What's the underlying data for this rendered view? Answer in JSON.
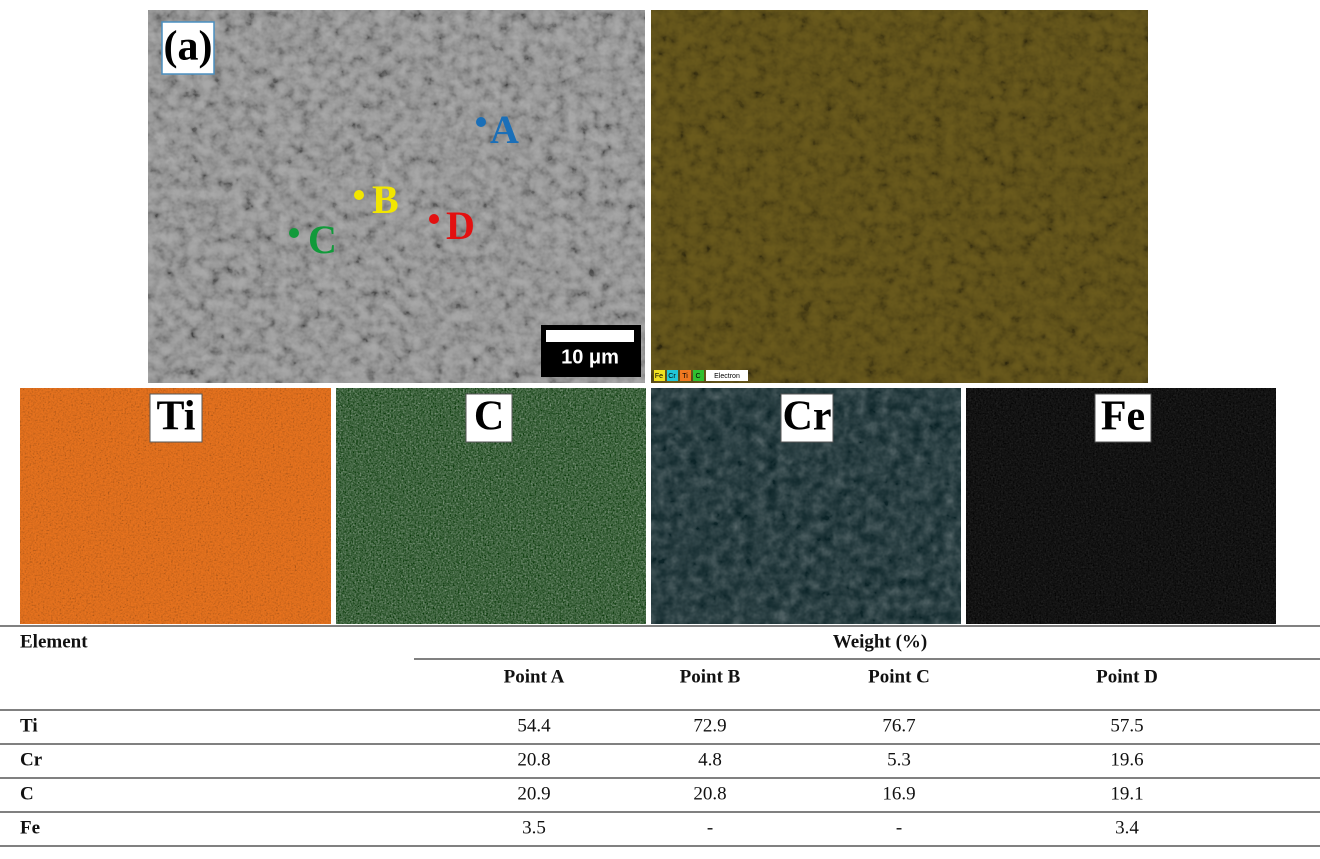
{
  "figure": {
    "panel_label": "(a)",
    "points": [
      "A",
      "B",
      "C",
      "D"
    ],
    "scale_bar": "10 μm",
    "legend": [
      "Fe",
      "Cr",
      "Ti",
      "C",
      "Electron"
    ],
    "maps": [
      "Ti",
      "C",
      "Cr",
      "Fe"
    ]
  },
  "table": {
    "header": "Element",
    "group_header": "Weight (%)",
    "columns": [
      "Point A",
      "Point B",
      "Point C",
      "Point D"
    ],
    "rows": [
      [
        "Ti",
        "54.4",
        "72.9",
        "76.7",
        "57.5"
      ],
      [
        "Cr",
        "20.8",
        "4.8",
        "5.3",
        "19.6"
      ],
      [
        "C",
        "20.9",
        "20.8",
        "16.9",
        "19.1"
      ],
      [
        "Fe",
        "3.5",
        "-",
        "-",
        "3.4"
      ]
    ]
  }
}
